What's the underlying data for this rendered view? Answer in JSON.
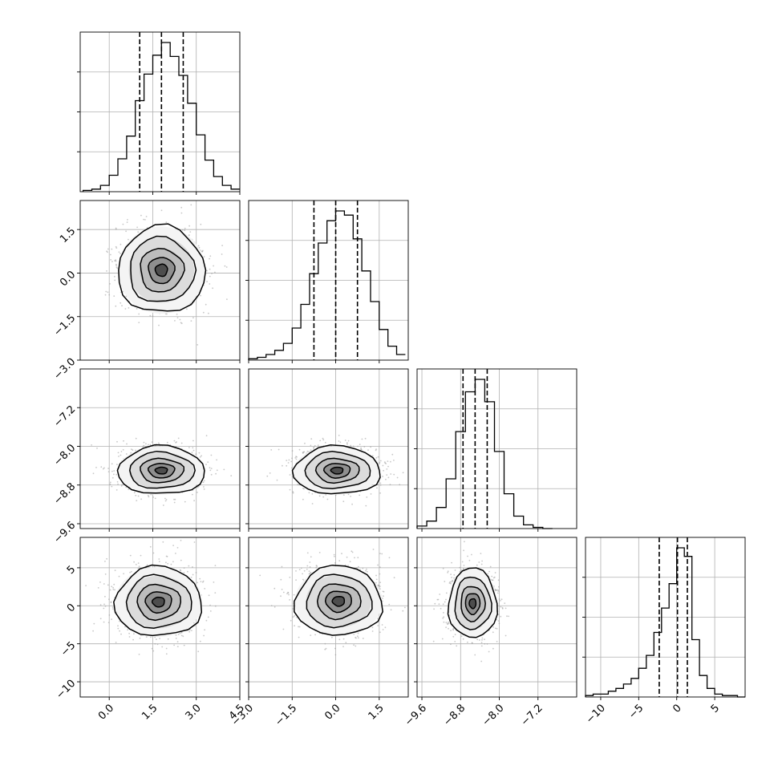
{
  "chart_data": {
    "type": "corner",
    "grid": true,
    "n_params": 4,
    "params": [
      {
        "range": [
          -1.0,
          4.5
        ],
        "ticks": [
          "0.0",
          "1.5",
          "3.0",
          "4.5"
        ],
        "tick_values": [
          0.0,
          1.5,
          3.0,
          4.5
        ],
        "quantiles": [
          1.05,
          1.8,
          2.55
        ],
        "mean": 1.8,
        "sd": 0.75
      },
      {
        "range": [
          -3.0,
          2.5
        ],
        "ticks": [
          "−3.0",
          "−1.5",
          "0.0",
          "1.5"
        ],
        "tick_values": [
          -3.0,
          -1.5,
          0.0,
          1.5
        ],
        "quantiles": [
          -0.75,
          0.0,
          0.75
        ],
        "mean": 0.0,
        "sd": 0.75
      },
      {
        "range": [
          -9.7,
          -6.4
        ],
        "ticks": [
          "−9.6",
          "−8.8",
          "−8.0",
          "−7.2"
        ],
        "tick_values": [
          -9.6,
          -8.8,
          -8.0,
          -7.2
        ],
        "quantiles": [
          -8.75,
          -8.5,
          -8.25
        ],
        "mean": -8.5,
        "sd": 0.25
      },
      {
        "range": [
          -12.0,
          9.0
        ],
        "ticks": [
          "−10",
          "−5",
          "0",
          "5"
        ],
        "tick_values": [
          -10,
          -5,
          0,
          5
        ],
        "quantiles": [
          -2.3,
          0.1,
          1.4
        ],
        "mean": 0.0,
        "sd": 2.3
      }
    ],
    "histograms": [
      {
        "param": 0,
        "edges": [
          -0.9,
          -0.6,
          -0.3,
          0.0,
          0.3,
          0.6,
          0.9,
          1.2,
          1.5,
          1.8,
          2.1,
          2.4,
          2.7,
          3.0,
          3.3,
          3.6,
          3.9,
          4.2,
          4.5
        ],
        "counts": [
          1,
          2,
          5,
          13,
          26,
          44,
          72,
          93,
          108,
          118,
          107,
          92,
          70,
          45,
          25,
          12,
          5,
          2
        ]
      },
      {
        "param": 1,
        "edges": [
          -3.0,
          -2.7,
          -2.4,
          -2.1,
          -1.8,
          -1.5,
          -1.2,
          -0.9,
          -0.6,
          -0.3,
          0.0,
          0.3,
          0.6,
          0.9,
          1.2,
          1.5,
          1.8,
          2.1,
          2.4
        ],
        "counts": [
          1,
          2,
          4,
          7,
          12,
          23,
          40,
          62,
          84,
          100,
          107,
          104,
          87,
          64,
          42,
          22,
          10,
          4
        ]
      },
      {
        "param": 2,
        "edges": [
          -9.7,
          -9.5,
          -9.3,
          -9.1,
          -8.9,
          -8.7,
          -8.5,
          -8.3,
          -8.1,
          -7.9,
          -7.7,
          -7.5,
          -7.3,
          -7.1,
          -6.9
        ],
        "counts": [
          2,
          6,
          17,
          40,
          78,
          110,
          120,
          102,
          62,
          28,
          10,
          3,
          1,
          0
        ]
      },
      {
        "param": 3,
        "edges": [
          -12,
          -11,
          -10,
          -9,
          -8,
          -7,
          -6,
          -5,
          -4,
          -3,
          -2,
          -1,
          0,
          1,
          2,
          3,
          4,
          5,
          6,
          7,
          8,
          9
        ],
        "counts": [
          1,
          2,
          2,
          4,
          6,
          9,
          13,
          20,
          29,
          45,
          62,
          79,
          104,
          98,
          40,
          15,
          6,
          2,
          1,
          1,
          0
        ]
      }
    ],
    "pairs": [
      {
        "x": 0,
        "y": 1,
        "center": [
          1.8,
          0.1
        ]
      },
      {
        "x": 0,
        "y": 2,
        "center": [
          1.8,
          -8.5
        ]
      },
      {
        "x": 1,
        "y": 2,
        "center": [
          0.05,
          -8.5
        ]
      },
      {
        "x": 0,
        "y": 3,
        "center": [
          1.7,
          0.5
        ]
      },
      {
        "x": 1,
        "y": 3,
        "center": [
          0.1,
          0.6
        ]
      },
      {
        "x": 2,
        "y": 3,
        "center": [
          -8.55,
          0.3
        ]
      }
    ]
  }
}
